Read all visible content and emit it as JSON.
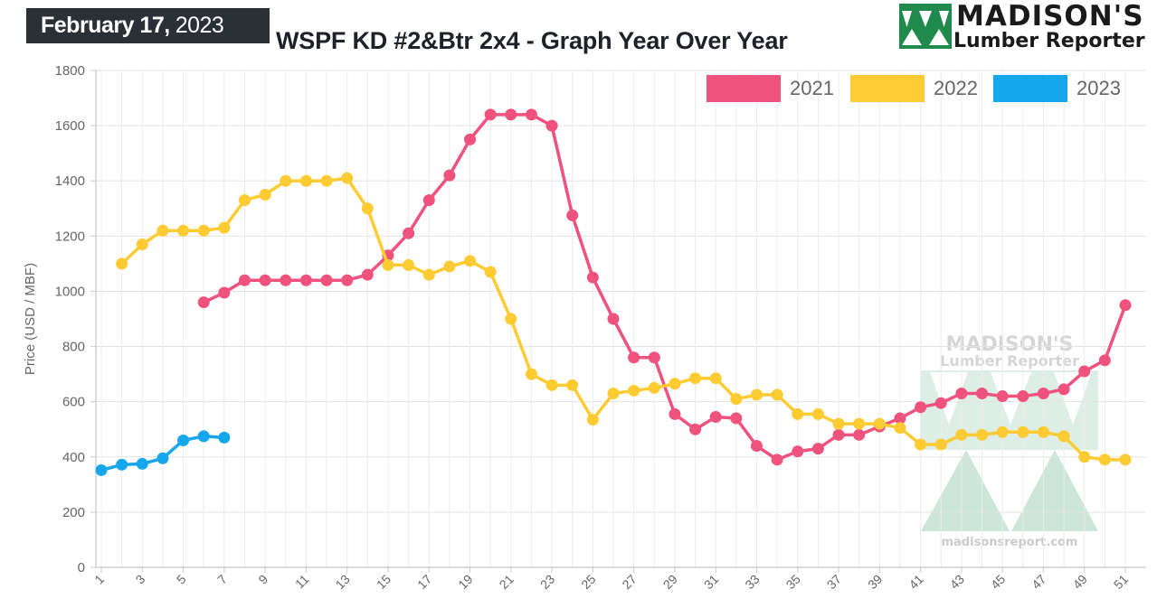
{
  "header": {
    "date_month_day": "February 17,",
    "date_year": "2023",
    "title": "WSPF KD #2&Btr 2x4 - Graph Year Over Year"
  },
  "logo": {
    "line1": "MADISON'S",
    "line2": "Lumber Reporter",
    "icon": "triple-tree-icon",
    "accent": "#1f8a4c"
  },
  "watermark": {
    "line1": "MADISON'S",
    "line2": "Lumber Reporter",
    "url": "madisonsreport.com"
  },
  "chart_data": {
    "type": "line",
    "ylabel": "Price (USD / MBF)",
    "xlabel": "",
    "ylim": [
      0,
      1800
    ],
    "yticks": [
      0,
      200,
      400,
      600,
      800,
      1000,
      1200,
      1400,
      1600,
      1800
    ],
    "x_range": [
      1,
      51
    ],
    "xticks": [
      1,
      3,
      5,
      7,
      9,
      11,
      13,
      15,
      17,
      19,
      21,
      23,
      25,
      27,
      29,
      31,
      33,
      35,
      37,
      39,
      41,
      43,
      45,
      47,
      49,
      51
    ],
    "grid": true,
    "legend_position": "top-right",
    "series": [
      {
        "name": "2021",
        "color": "#f0527e",
        "start_week": 6,
        "values": [
          960,
          995,
          1040,
          1040,
          1040,
          1040,
          1040,
          1040,
          1060,
          1130,
          1210,
          1330,
          1420,
          1550,
          1640,
          1640,
          1640,
          1600,
          1275,
          1050,
          900,
          760,
          760,
          555,
          500,
          545,
          540,
          440,
          390,
          420,
          430,
          480,
          480,
          510,
          540,
          580,
          595,
          630,
          630,
          620,
          620,
          630,
          645,
          710,
          750,
          950
        ]
      },
      {
        "name": "2022",
        "color": "#fecb33",
        "start_week": 2,
        "values": [
          1100,
          1170,
          1220,
          1220,
          1220,
          1230,
          1330,
          1350,
          1400,
          1400,
          1400,
          1410,
          1300,
          1095,
          1095,
          1060,
          1090,
          1110,
          1070,
          900,
          700,
          660,
          660,
          535,
          630,
          640,
          650,
          665,
          685,
          685,
          610,
          625,
          625,
          555,
          555,
          520,
          520,
          520,
          505,
          445,
          445,
          480,
          480,
          490,
          490,
          490,
          475,
          400,
          390,
          390
        ]
      },
      {
        "name": "2023",
        "color": "#16a6ec",
        "start_week": 1,
        "values": [
          352,
          372,
          375,
          395,
          460,
          475,
          470
        ]
      }
    ]
  }
}
